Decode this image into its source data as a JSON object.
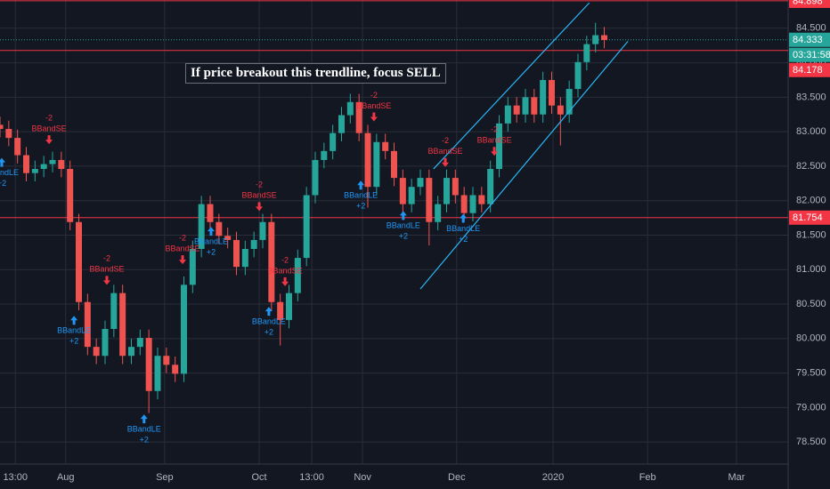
{
  "chart_data": {
    "type": "candlestick",
    "annotation": "If price breakout this trendline, focus SELL",
    "xlim": [
      0,
      180
    ],
    "ylim": [
      78.18,
      84.91
    ],
    "xticks": [
      {
        "value": 3.5,
        "label": "13:00"
      },
      {
        "value": 15,
        "label": "Aug"
      },
      {
        "value": 37.6,
        "label": "Sep"
      },
      {
        "value": 59.2,
        "label": "Oct"
      },
      {
        "value": 71.2,
        "label": "13:00"
      },
      {
        "value": 82.8,
        "label": "Nov"
      },
      {
        "value": 104.3,
        "label": "Dec"
      },
      {
        "value": 126.3,
        "label": "2020"
      },
      {
        "value": 147.9,
        "label": "Feb"
      },
      {
        "value": 168.2,
        "label": "Mar"
      }
    ],
    "yticks": [
      {
        "value": 78.5,
        "label": "78.500"
      },
      {
        "value": 79,
        "label": "79.000"
      },
      {
        "value": 79.5,
        "label": "79.500"
      },
      {
        "value": 80,
        "label": "80.000"
      },
      {
        "value": 80.5,
        "label": "80.500"
      },
      {
        "value": 81,
        "label": "81.000"
      },
      {
        "value": 81.5,
        "label": "81.500"
      },
      {
        "value": 82,
        "label": "82.000"
      },
      {
        "value": 82.5,
        "label": "82.500"
      },
      {
        "value": 83,
        "label": "83.000"
      },
      {
        "value": 83.5,
        "label": "83.500"
      },
      {
        "value": 84,
        "label": "84.000"
      },
      {
        "value": 84.5,
        "label": "84.500"
      }
    ],
    "grid": true,
    "up_color": "#26a69a",
    "down_color": "#ef5350",
    "x": [
      0,
      2,
      4,
      6,
      8,
      10,
      12,
      14,
      16,
      18,
      20,
      22,
      24,
      26,
      28,
      30,
      32,
      34,
      36,
      38,
      40,
      42,
      44,
      46,
      48,
      50,
      52,
      54,
      56,
      58,
      60,
      62,
      64,
      66,
      68,
      70,
      72,
      74,
      76,
      78,
      80,
      82,
      84,
      86,
      88,
      90,
      92,
      94,
      96,
      98,
      100,
      102,
      104,
      106,
      108,
      110,
      112,
      114,
      116,
      118,
      120,
      122,
      124,
      126,
      128,
      130,
      132,
      134,
      136,
      138
    ],
    "open": [
      83.1,
      83.04,
      82.91,
      82.66,
      82.4,
      82.46,
      82.53,
      82.59,
      82.46,
      81.69,
      80.53,
      79.88,
      79.75,
      80.14,
      80.66,
      79.75,
      79.88,
      80.01,
      79.24,
      79.75,
      79.62,
      79.49,
      80.78,
      81.3,
      81.95,
      81.69,
      81.49,
      81.43,
      81.04,
      81.3,
      81.43,
      81.69,
      80.53,
      80.27,
      80.66,
      81.17,
      82.08,
      82.59,
      82.72,
      82.98,
      83.24,
      83.43,
      82.98,
      82.2,
      82.85,
      82.72,
      82.33,
      81.95,
      82.2,
      82.33,
      81.69,
      81.95,
      82.33,
      82.08,
      81.82,
      82.08,
      81.95,
      82.46,
      83.12,
      83.38,
      83.25,
      83.5,
      83.25,
      83.75,
      83.38,
      83.25,
      83.62,
      84.01,
      84.27,
      84.4
    ],
    "high": [
      83.22,
      83.16,
      83.03,
      82.78,
      82.58,
      82.65,
      82.71,
      82.71,
      82.58,
      81.81,
      80.65,
      80.0,
      80.26,
      80.78,
      80.78,
      80.0,
      80.13,
      80.13,
      79.87,
      79.87,
      79.74,
      80.9,
      81.42,
      82.07,
      82.07,
      81.81,
      81.61,
      81.55,
      81.42,
      81.55,
      81.81,
      81.81,
      80.65,
      80.78,
      81.29,
      82.2,
      82.71,
      82.84,
      83.1,
      83.36,
      83.55,
      83.55,
      83.1,
      82.97,
      82.97,
      82.84,
      82.45,
      82.32,
      82.45,
      82.45,
      82.07,
      82.45,
      82.45,
      82.2,
      82.2,
      82.2,
      82.58,
      83.24,
      83.5,
      83.5,
      83.62,
      83.62,
      83.87,
      83.87,
      83.5,
      83.74,
      84.13,
      84.39,
      84.58,
      84.52
    ],
    "low": [
      82.92,
      82.79,
      82.54,
      82.28,
      82.28,
      82.34,
      82.41,
      82.34,
      81.57,
      80.41,
      79.76,
      79.63,
      79.63,
      80.02,
      79.63,
      79.63,
      79.76,
      78.92,
      79.12,
      79.5,
      79.37,
      79.37,
      80.66,
      81.18,
      81.57,
      81.37,
      81.31,
      80.92,
      80.92,
      81.18,
      81.31,
      80.41,
      79.9,
      80.15,
      80.54,
      81.05,
      81.96,
      82.47,
      82.6,
      82.86,
      83.12,
      82.86,
      81.9,
      82.08,
      82.6,
      82.21,
      81.83,
      81.83,
      82.08,
      81.35,
      81.57,
      81.83,
      81.96,
      81.7,
      81.7,
      81.83,
      81.83,
      82.34,
      83.0,
      83.13,
      83.13,
      83.13,
      83.13,
      83.26,
      82.8,
      83.13,
      83.5,
      83.89,
      84.15,
      84.21
    ],
    "close": [
      83.04,
      82.91,
      82.66,
      82.4,
      82.46,
      82.53,
      82.59,
      82.46,
      81.69,
      80.53,
      79.88,
      79.75,
      80.14,
      80.66,
      79.75,
      79.88,
      80.01,
      79.24,
      79.75,
      79.62,
      79.49,
      80.78,
      81.3,
      81.95,
      81.69,
      81.49,
      81.43,
      81.04,
      81.3,
      81.43,
      81.69,
      80.53,
      80.27,
      80.66,
      81.17,
      82.08,
      82.59,
      82.72,
      82.98,
      83.24,
      83.43,
      82.98,
      82.2,
      82.85,
      82.72,
      82.33,
      81.95,
      82.2,
      82.33,
      81.69,
      81.95,
      82.33,
      82.08,
      81.82,
      82.08,
      81.95,
      82.46,
      83.12,
      83.38,
      83.25,
      83.5,
      83.25,
      83.75,
      83.38,
      83.25,
      83.62,
      84.01,
      84.27,
      84.4,
      84.33
    ],
    "signals": [
      {
        "x": 0.4,
        "price": 82.62,
        "side": "BBandLE",
        "qty": "+2"
      },
      {
        "x": 11.2,
        "price": 82.82,
        "side": "BBandSE",
        "qty": "-2"
      },
      {
        "x": 16.9,
        "price": 80.33,
        "side": "BBandLE",
        "qty": "+2"
      },
      {
        "x": 24.4,
        "price": 80.78,
        "side": "BBandSE",
        "qty": "-2"
      },
      {
        "x": 32.9,
        "price": 78.9,
        "side": "BBandLE",
        "qty": "+2"
      },
      {
        "x": 41.7,
        "price": 81.08,
        "side": "BBandSE",
        "qty": "-2"
      },
      {
        "x": 48.2,
        "price": 81.62,
        "side": "BBandLE",
        "qty": "+2"
      },
      {
        "x": 59.2,
        "price": 81.85,
        "side": "BBandSE",
        "qty": "-2"
      },
      {
        "x": 61.4,
        "price": 80.46,
        "side": "BBandLE",
        "qty": "+2"
      },
      {
        "x": 65.1,
        "price": 80.76,
        "side": "BBandSE",
        "qty": "-2"
      },
      {
        "x": 82.4,
        "price": 82.29,
        "side": "BBandLE",
        "qty": "+2"
      },
      {
        "x": 85.4,
        "price": 83.15,
        "side": "BBandSE",
        "qty": "-2"
      },
      {
        "x": 92.1,
        "price": 81.85,
        "side": "BBandLE",
        "qty": "+2"
      },
      {
        "x": 101.7,
        "price": 82.49,
        "side": "BBandSE",
        "qty": "-2"
      },
      {
        "x": 105.8,
        "price": 81.81,
        "side": "BBandLE",
        "qty": "+2"
      },
      {
        "x": 112.9,
        "price": 82.65,
        "side": "BBandSE",
        "qty": "-2"
      }
    ],
    "trendlines": [
      {
        "x": [
          99.0,
          134.6
        ],
        "y": [
          82.46,
          84.87
        ]
      },
      {
        "x": [
          96.0,
          143.4
        ],
        "y": [
          80.72,
          84.31
        ]
      }
    ],
    "trendline_color": "#29b6f6",
    "levels": [
      84.898,
      84.178,
      81.754
    ],
    "level_color": "#f23645",
    "last_price": 84.333,
    "countdown": "03:31:58"
  }
}
